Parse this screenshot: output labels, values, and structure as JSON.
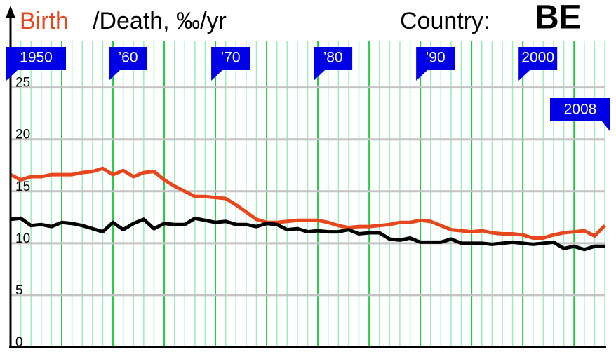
{
  "chart_data": {
    "type": "line",
    "title": "/Death, ‰/yr",
    "country_label": "Country:",
    "country": "BE",
    "x": [
      1950,
      1951,
      1952,
      1953,
      1954,
      1955,
      1956,
      1957,
      1958,
      1959,
      1960,
      1961,
      1962,
      1963,
      1964,
      1965,
      1966,
      1967,
      1968,
      1969,
      1970,
      1971,
      1972,
      1973,
      1974,
      1975,
      1976,
      1977,
      1978,
      1979,
      1980,
      1981,
      1982,
      1983,
      1984,
      1985,
      1986,
      1987,
      1988,
      1989,
      1990,
      1991,
      1992,
      1993,
      1994,
      1995,
      1996,
      1997,
      1998,
      1999,
      2000,
      2001,
      2002,
      2003,
      2004,
      2005,
      2006,
      2007,
      2008
    ],
    "series": [
      {
        "name": "Birth",
        "color": "#e8461c",
        "values": [
          16.6,
          16.1,
          16.4,
          16.4,
          16.6,
          16.6,
          16.6,
          16.8,
          16.9,
          17.2,
          16.6,
          17.0,
          16.4,
          16.8,
          16.9,
          16.1,
          15.5,
          15.0,
          14.5,
          14.5,
          14.4,
          14.3,
          13.7,
          13.0,
          12.3,
          12.0,
          12.0,
          12.1,
          12.2,
          12.2,
          12.2,
          12.0,
          11.7,
          11.5,
          11.6,
          11.6,
          11.7,
          11.8,
          12.0,
          12.0,
          12.2,
          12.1,
          11.7,
          11.3,
          11.2,
          11.1,
          11.2,
          11.0,
          10.9,
          10.9,
          10.8,
          10.5,
          10.5,
          10.8,
          11.0,
          11.1,
          11.2,
          10.7,
          11.7
        ]
      },
      {
        "color": "#000000",
        "values": [
          12.3,
          12.4,
          11.7,
          11.8,
          11.6,
          12.0,
          11.9,
          11.7,
          11.4,
          11.1,
          12.0,
          11.3,
          11.9,
          12.3,
          11.4,
          11.9,
          11.8,
          11.8,
          12.4,
          12.2,
          12.0,
          12.1,
          11.8,
          11.8,
          11.6,
          11.9,
          11.8,
          11.3,
          11.4,
          11.1,
          11.2,
          11.1,
          11.1,
          11.3,
          10.9,
          11.0,
          11.0,
          10.4,
          10.3,
          10.5,
          10.1,
          10.1,
          10.1,
          10.4,
          10.0,
          10.0,
          10.0,
          9.9,
          10.0,
          10.1,
          10.0,
          9.9,
          10.0,
          10.1,
          9.5,
          9.7,
          9.4,
          9.7,
          9.7
        ]
      }
    ],
    "xlim": [
      1950,
      2008
    ],
    "xticks": [
      1950,
      {
        "value": 1960,
        "label": "’60"
      },
      {
        "value": 1970,
        "label": "’70"
      },
      {
        "value": 1980,
        "label": "’80"
      },
      {
        "value": 1990,
        "label": "’90"
      },
      2000,
      2008
    ],
    "ylim": [
      0,
      29.5
    ],
    "yticks": [
      0,
      5,
      10,
      15,
      20,
      25
    ],
    "grid": true
  }
}
